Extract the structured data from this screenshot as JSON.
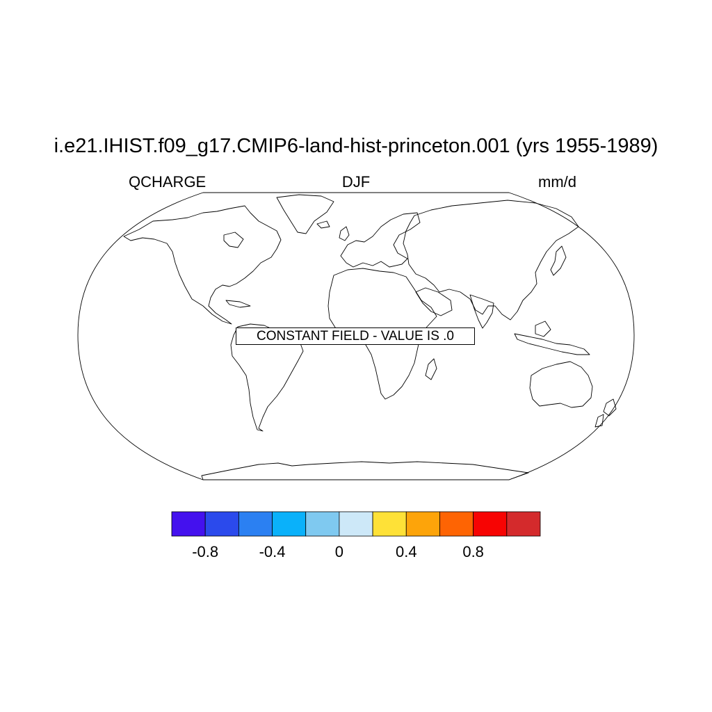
{
  "header": {
    "title": "i.e21.IHIST.f09_g17.CMIP6-land-hist-princeton.001 (yrs 1955-1989)",
    "variable": "QCHARGE",
    "season": "DJF",
    "units": "mm/d"
  },
  "map": {
    "projection": "Robinson",
    "note": "CONSTANT FIELD - VALUE IS .0",
    "coastline_color": "#000000",
    "background_color": "#ffffff"
  },
  "colorbar": {
    "colors": [
      "#4411ee",
      "#2b4aec",
      "#2b80f2",
      "#0ab1fa",
      "#7fc9f0",
      "#cde8f8",
      "#fee137",
      "#fda40a",
      "#fe6403",
      "#f70403",
      "#d42a2c"
    ],
    "ticks": [
      {
        "value": -0.8,
        "label": "-0.8"
      },
      {
        "value": -0.4,
        "label": "-0.4"
      },
      {
        "value": 0,
        "label": "0"
      },
      {
        "value": 0.4,
        "label": "0.4"
      },
      {
        "value": 0.8,
        "label": "0.8"
      }
    ]
  }
}
